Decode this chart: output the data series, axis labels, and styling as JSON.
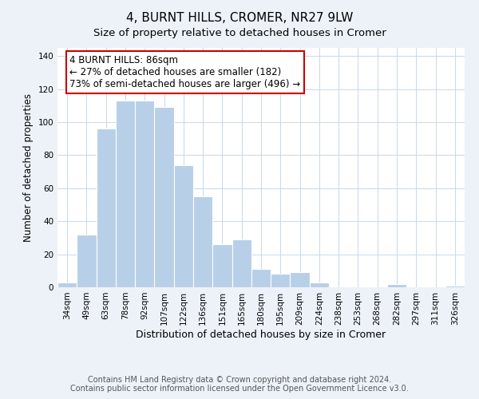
{
  "title": "4, BURNT HILLS, CROMER, NR27 9LW",
  "subtitle": "Size of property relative to detached houses in Cromer",
  "xlabel": "Distribution of detached houses by size in Cromer",
  "ylabel": "Number of detached properties",
  "bar_labels": [
    "34sqm",
    "49sqm",
    "63sqm",
    "78sqm",
    "92sqm",
    "107sqm",
    "122sqm",
    "136sqm",
    "151sqm",
    "165sqm",
    "180sqm",
    "195sqm",
    "209sqm",
    "224sqm",
    "238sqm",
    "253sqm",
    "268sqm",
    "282sqm",
    "297sqm",
    "311sqm",
    "326sqm"
  ],
  "bar_values": [
    3,
    32,
    96,
    113,
    113,
    109,
    74,
    55,
    26,
    29,
    11,
    8,
    9,
    3,
    0,
    0,
    0,
    2,
    0,
    0,
    1
  ],
  "bar_color": "#b8cfe8",
  "bar_edge_color": "#b8cfe8",
  "ylim": [
    0,
    145
  ],
  "annotation_title": "4 BURNT HILLS: 86sqm",
  "annotation_line1": "← 27% of detached houses are smaller (182)",
  "annotation_line2": "73% of semi-detached houses are larger (496) →",
  "footer_line1": "Contains HM Land Registry data © Crown copyright and database right 2024.",
  "footer_line2": "Contains public sector information licensed under the Open Government Licence v3.0.",
  "bg_color": "#edf2f9",
  "plot_bg_color": "#ffffff",
  "annotation_box_color": "#ffffff",
  "annotation_box_edge_color": "#cc0000",
  "title_fontsize": 11,
  "subtitle_fontsize": 9.5,
  "ylabel_fontsize": 8.5,
  "xlabel_fontsize": 9,
  "tick_fontsize": 7.5,
  "footer_fontsize": 7,
  "annotation_fontsize": 8.5,
  "grid_color": "#c8d8ea"
}
